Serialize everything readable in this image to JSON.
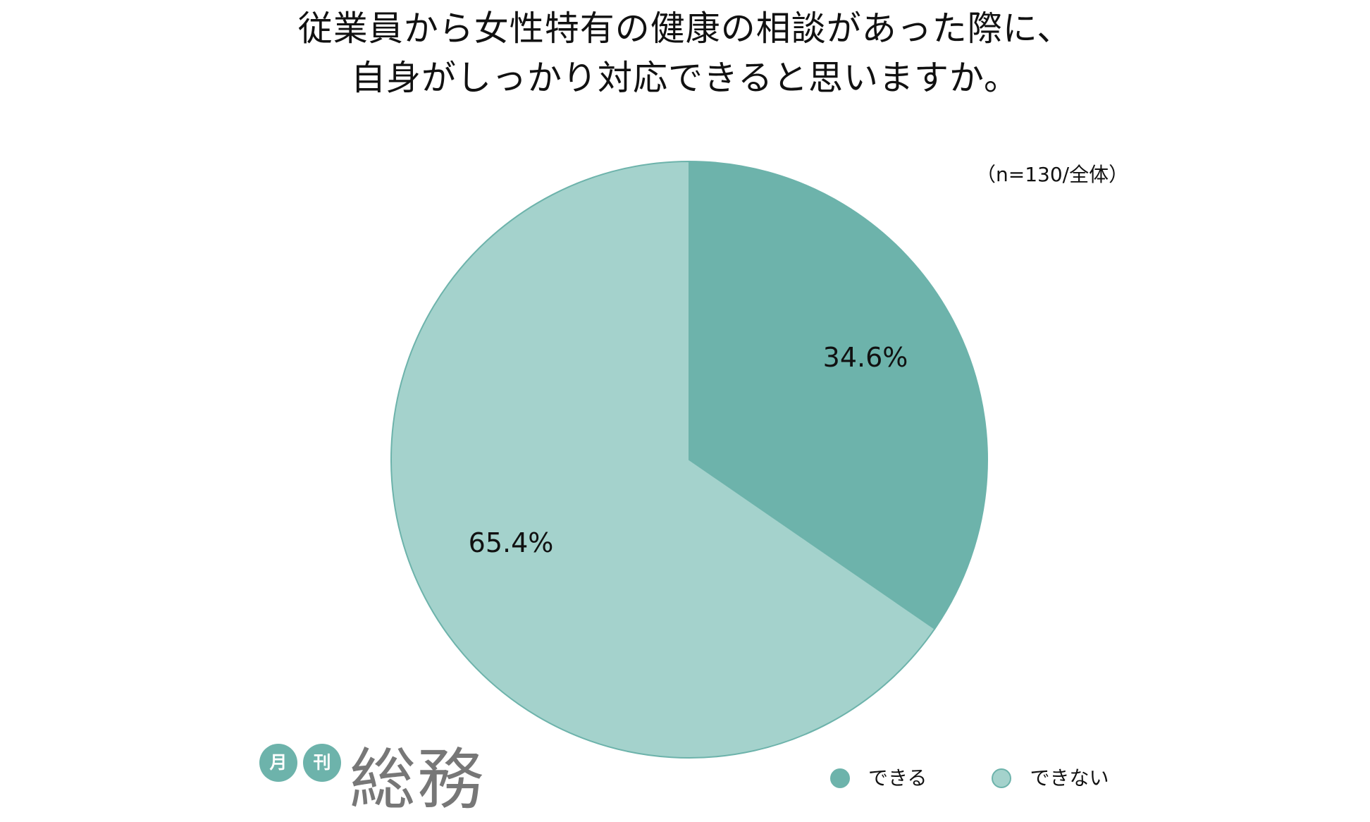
{
  "chart_data": {
    "type": "pie",
    "title_lines": [
      "従業員から女性特有の健康の相談があった際に、",
      "自身がしっかり対応できると思いますか。"
    ],
    "note": "（n=130/全体）",
    "slices": [
      {
        "label": "できる",
        "value": 34.6,
        "value_label": "34.6%",
        "color": "#6db3ab"
      },
      {
        "label": "できない",
        "value": 65.4,
        "value_label": "65.4%",
        "color": "#a4d2cc"
      }
    ],
    "start_angle": "12 o'clock",
    "direction": "clockwise",
    "legend_position": "bottom-right",
    "slice_border_color": "#6db3ab"
  },
  "logo": {
    "badges": [
      "月",
      "刊"
    ],
    "badge_color": "#6db3ab",
    "mark": "総務"
  }
}
